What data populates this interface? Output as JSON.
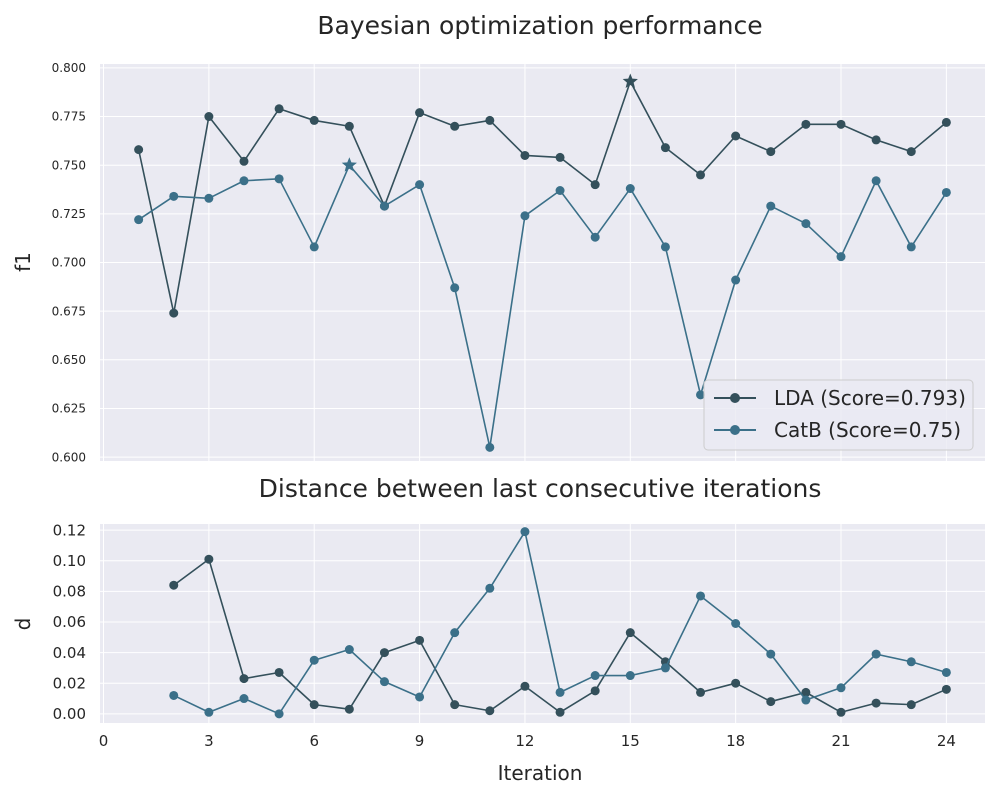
{
  "figure": {
    "background": "#ffffff",
    "axes_face": "#eaeaf2",
    "grid_color": "#ffffff",
    "colors": {
      "LDA": "#34505b",
      "CatB": "#3b7089"
    }
  },
  "chart_data": [
    {
      "type": "line",
      "title": "Bayesian optimization performance",
      "xlabel": "",
      "ylabel": "f1",
      "xlim": [
        -0.1,
        25.1
      ],
      "ylim": [
        0.598,
        0.802
      ],
      "yticks": [
        0.6,
        0.625,
        0.65,
        0.675,
        0.7,
        0.725,
        0.75,
        0.775,
        0.8
      ],
      "ytick_labels": [
        "0.600",
        "0.625",
        "0.650",
        "0.675",
        "0.700",
        "0.725",
        "0.750",
        "0.775",
        "0.800"
      ],
      "xticks": [
        0,
        3,
        6,
        9,
        12,
        15,
        18,
        21,
        24
      ],
      "grid": true,
      "legend_position": "lower-right",
      "series": [
        {
          "name": "LDA (Score=0.793)",
          "color": "#34505b",
          "x": [
            1,
            2,
            3,
            4,
            5,
            6,
            7,
            8,
            9,
            10,
            11,
            12,
            13,
            14,
            15,
            16,
            17,
            18,
            19,
            20,
            21,
            22,
            23,
            24
          ],
          "y": [
            0.758,
            0.674,
            0.775,
            0.752,
            0.779,
            0.773,
            0.77,
            0.729,
            0.777,
            0.77,
            0.773,
            0.755,
            0.754,
            0.74,
            0.793,
            0.759,
            0.745,
            0.765,
            0.757,
            0.771,
            0.771,
            0.763,
            0.757,
            0.772
          ],
          "best": {
            "x": 15,
            "y": 0.793
          }
        },
        {
          "name": "CatB (Score=0.75)",
          "color": "#3b7089",
          "x": [
            1,
            2,
            3,
            4,
            5,
            6,
            7,
            8,
            9,
            10,
            11,
            12,
            13,
            14,
            15,
            16,
            17,
            18,
            19,
            20,
            21,
            22,
            23,
            24
          ],
          "y": [
            0.722,
            0.734,
            0.733,
            0.742,
            0.743,
            0.708,
            0.75,
            0.729,
            0.74,
            0.687,
            0.605,
            0.724,
            0.737,
            0.713,
            0.738,
            0.708,
            0.632,
            0.691,
            0.729,
            0.72,
            0.703,
            0.742,
            0.708,
            0.736
          ],
          "best": {
            "x": 7,
            "y": 0.75
          }
        }
      ]
    },
    {
      "type": "line",
      "title": "Distance between last consecutive iterations",
      "xlabel": "Iteration",
      "ylabel": "d",
      "xlim": [
        -0.1,
        25.1
      ],
      "ylim": [
        -0.006,
        0.124
      ],
      "yticks": [
        0.0,
        0.02,
        0.04,
        0.06,
        0.08,
        0.1,
        0.12
      ],
      "ytick_labels": [
        "0.00",
        "0.02",
        "0.04",
        "0.06",
        "0.08",
        "0.10",
        "0.12"
      ],
      "xticks": [
        0,
        3,
        6,
        9,
        12,
        15,
        18,
        21,
        24
      ],
      "xtick_labels": [
        "0",
        "3",
        "6",
        "9",
        "12",
        "15",
        "18",
        "21",
        "24"
      ],
      "grid": true,
      "series": [
        {
          "color": "#34505b",
          "x": [
            2,
            3,
            4,
            5,
            6,
            7,
            8,
            9,
            10,
            11,
            12,
            13,
            14,
            15,
            16,
            17,
            18,
            19,
            20,
            21,
            22,
            23,
            24
          ],
          "y": [
            0.084,
            0.101,
            0.023,
            0.027,
            0.006,
            0.003,
            0.04,
            0.048,
            0.006,
            0.002,
            0.018,
            0.001,
            0.015,
            0.053,
            0.034,
            0.014,
            0.02,
            0.008,
            0.014,
            0.001,
            0.007,
            0.006,
            0.016
          ]
        },
        {
          "color": "#3b7089",
          "x": [
            2,
            3,
            4,
            5,
            6,
            7,
            8,
            9,
            10,
            11,
            12,
            13,
            14,
            15,
            16,
            17,
            18,
            19,
            20,
            21,
            22,
            23,
            24
          ],
          "y": [
            0.012,
            0.001,
            0.01,
            0.0,
            0.035,
            0.042,
            0.021,
            0.011,
            0.053,
            0.082,
            0.119,
            0.014,
            0.025,
            0.025,
            0.03,
            0.077,
            0.059,
            0.039,
            0.009,
            0.017,
            0.039,
            0.034,
            0.027
          ]
        }
      ]
    }
  ]
}
